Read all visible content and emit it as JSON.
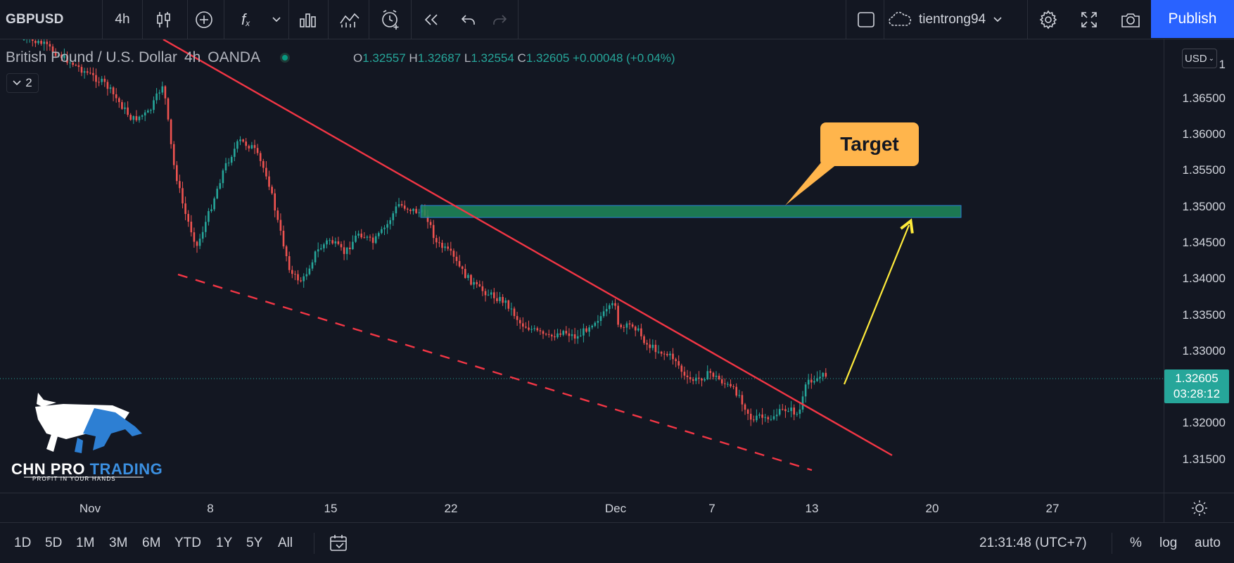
{
  "toolbar": {
    "symbol": "GBPUSD",
    "interval": "4h",
    "icons": [
      "candles-icon",
      "add-indicator-icon",
      "fx-icon",
      "chevron-down-icon",
      "bars-template-icon",
      "compare-icon",
      "alert-icon",
      "replay-icon",
      "undo-icon",
      "redo-icon"
    ],
    "layout_icon": "layout-square-icon",
    "username": "tientrong94",
    "publish_label": "Publish"
  },
  "legend": {
    "title": "British Pound / U.S. Dollar",
    "interval": "4h",
    "source": "OANDA",
    "open_label": "O",
    "open": "1.32557",
    "high_label": "H",
    "high": "1.32687",
    "low_label": "L",
    "low": "1.32554",
    "close_label": "C",
    "close": "1.32605",
    "change": "+0.00048 (+0.04%)",
    "indicators_count": "2"
  },
  "price_axis": {
    "currency": "USD",
    "top_partial": "1",
    "ticks": [
      "1.36500",
      "1.36000",
      "1.35500",
      "1.35000",
      "1.34500",
      "1.34000",
      "1.33500",
      "1.33000",
      "1.32000",
      "1.31500"
    ],
    "current_price": "1.32605",
    "countdown": "03:28:12"
  },
  "time_axis": {
    "ticks": [
      "Nov",
      "8",
      "15",
      "22",
      "Dec",
      "7",
      "13",
      "20",
      "27"
    ]
  },
  "annotation": {
    "target_label": "Target"
  },
  "logo": {
    "title_main": "CHN PRO ",
    "title_accent": "TRADING",
    "tagline": "PROFIT IN YOUR HANDS"
  },
  "bottom_bar": {
    "ranges": [
      "1D",
      "5D",
      "1M",
      "3M",
      "6M",
      "YTD",
      "1Y",
      "5Y",
      "All"
    ],
    "clock": "21:31:48 (UTC+7)",
    "percent": "%",
    "log": "log",
    "auto": "auto"
  },
  "colors": {
    "background": "#131722",
    "up": "#26a69a",
    "down": "#ef5350",
    "trendline": "#f23645",
    "target_zone": "#1f8a5a",
    "arrow": "#ffeb3b",
    "callout": "#ffb54c",
    "publish": "#2962ff"
  }
}
